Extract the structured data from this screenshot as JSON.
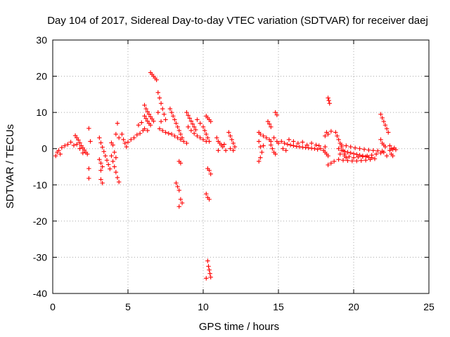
{
  "chart_data": {
    "type": "scatter",
    "title": "Day 104 of 2017, Sidereal Day-to-day VTEC variation (SDTVAR) for receiver daej",
    "xlabel": "GPS time / hours",
    "ylabel": "SDTVAR / TECUs",
    "xlim": [
      0,
      25
    ],
    "ylim": [
      -40,
      30
    ],
    "xticks": [
      0,
      5,
      10,
      15,
      20,
      25
    ],
    "yticks": [
      -40,
      -30,
      -20,
      -10,
      0,
      10,
      20,
      30
    ],
    "xtick_labels": [
      "0",
      "5",
      "10",
      "15",
      "20",
      "25"
    ],
    "ytick_labels": [
      "-40",
      "-30",
      "-20",
      "-10",
      "0",
      "10",
      "20",
      "30"
    ],
    "grid": true,
    "marker": "+",
    "series": [
      {
        "name": "SDTVAR",
        "color": "#ff0000",
        "points": [
          [
            0.2,
            -2.0
          ],
          [
            0.3,
            -1.0
          ],
          [
            0.4,
            -0.5
          ],
          [
            0.6,
            0.3
          ],
          [
            0.8,
            0.8
          ],
          [
            1.0,
            1.2
          ],
          [
            1.2,
            1.8
          ],
          [
            1.4,
            0.9
          ],
          [
            0.5,
            -1.5
          ],
          [
            1.5,
            3.6
          ],
          [
            1.6,
            3.0
          ],
          [
            1.7,
            2.4
          ],
          [
            1.8,
            1.6
          ],
          [
            1.9,
            0.8
          ],
          [
            2.0,
            0.2
          ],
          [
            2.1,
            -0.4
          ],
          [
            2.2,
            -1.0
          ],
          [
            2.3,
            -1.5
          ],
          [
            1.6,
            1.2
          ],
          [
            1.8,
            0.0
          ],
          [
            2.0,
            -1.2
          ],
          [
            2.4,
            5.6
          ],
          [
            2.5,
            2.0
          ],
          [
            2.4,
            -5.5
          ],
          [
            2.4,
            -8.2
          ],
          [
            3.1,
            3.0
          ],
          [
            3.2,
            1.6
          ],
          [
            3.3,
            0.4
          ],
          [
            3.4,
            -0.8
          ],
          [
            3.5,
            -2.0
          ],
          [
            3.6,
            -3.2
          ],
          [
            3.7,
            -4.4
          ],
          [
            3.8,
            -5.6
          ],
          [
            3.1,
            -3.0
          ],
          [
            3.2,
            -4.0
          ],
          [
            3.3,
            -5.0
          ],
          [
            3.2,
            -6.0
          ],
          [
            3.2,
            -8.5
          ],
          [
            3.3,
            -9.5
          ],
          [
            3.9,
            -2.0
          ],
          [
            4.0,
            -3.5
          ],
          [
            4.1,
            -5.0
          ],
          [
            4.2,
            -6.5
          ],
          [
            4.3,
            -8.0
          ],
          [
            4.4,
            -9.2
          ],
          [
            4.1,
            -1.0
          ],
          [
            4.2,
            -2.5
          ],
          [
            4.3,
            7.0
          ],
          [
            4.2,
            4.0
          ],
          [
            4.4,
            3.0
          ],
          [
            4.6,
            4.0
          ],
          [
            4.7,
            2.5
          ],
          [
            4.8,
            1.5
          ],
          [
            4.9,
            0.5
          ],
          [
            3.9,
            1.6
          ],
          [
            4.0,
            1.0
          ],
          [
            5.0,
            1.8
          ],
          [
            5.2,
            2.5
          ],
          [
            5.4,
            3.0
          ],
          [
            5.6,
            3.8
          ],
          [
            5.8,
            4.2
          ],
          [
            6.0,
            5.0
          ],
          [
            5.7,
            6.5
          ],
          [
            5.9,
            7.2
          ],
          [
            6.1,
            12.0
          ],
          [
            6.2,
            11.0
          ],
          [
            6.3,
            10.2
          ],
          [
            6.4,
            9.5
          ],
          [
            6.5,
            8.8
          ],
          [
            6.6,
            8.2
          ],
          [
            6.7,
            7.6
          ],
          [
            6.1,
            9.0
          ],
          [
            6.2,
            8.3
          ],
          [
            6.3,
            7.6
          ],
          [
            6.4,
            7.0
          ],
          [
            6.5,
            6.5
          ],
          [
            6.1,
            5.5
          ],
          [
            6.3,
            5.0
          ],
          [
            6.5,
            21.0
          ],
          [
            6.6,
            20.5
          ],
          [
            6.7,
            20.0
          ],
          [
            6.8,
            19.5
          ],
          [
            6.9,
            19.0
          ],
          [
            7.0,
            15.5
          ],
          [
            7.1,
            14.0
          ],
          [
            7.2,
            12.5
          ],
          [
            7.3,
            11.0
          ],
          [
            7.4,
            9.5
          ],
          [
            7.5,
            8.0
          ],
          [
            7.0,
            10.0
          ],
          [
            7.2,
            7.5
          ],
          [
            7.1,
            5.5
          ],
          [
            7.3,
            5.0
          ],
          [
            7.5,
            4.5
          ],
          [
            7.7,
            4.2
          ],
          [
            7.9,
            4.0
          ],
          [
            8.1,
            3.5
          ],
          [
            8.3,
            3.0
          ],
          [
            8.5,
            2.5
          ],
          [
            8.7,
            2.0
          ],
          [
            8.9,
            1.5
          ],
          [
            7.8,
            11.0
          ],
          [
            7.9,
            10.0
          ],
          [
            8.0,
            9.0
          ],
          [
            8.1,
            8.0
          ],
          [
            8.2,
            7.0
          ],
          [
            8.3,
            6.0
          ],
          [
            8.4,
            5.0
          ],
          [
            8.5,
            4.0
          ],
          [
            8.6,
            3.0
          ],
          [
            8.4,
            -3.5
          ],
          [
            8.5,
            -4.0
          ],
          [
            8.2,
            -9.5
          ],
          [
            8.3,
            -10.5
          ],
          [
            8.4,
            -11.5
          ],
          [
            8.5,
            -14.0
          ],
          [
            8.6,
            -15.0
          ],
          [
            8.4,
            -16.0
          ],
          [
            8.9,
            10.0
          ],
          [
            9.0,
            9.2
          ],
          [
            9.1,
            8.4
          ],
          [
            9.2,
            7.6
          ],
          [
            9.3,
            6.8
          ],
          [
            9.4,
            6.0
          ],
          [
            9.5,
            5.2
          ],
          [
            9.0,
            6.0
          ],
          [
            9.2,
            5.0
          ],
          [
            9.4,
            4.2
          ],
          [
            9.6,
            3.5
          ],
          [
            9.8,
            3.0
          ],
          [
            10.0,
            2.5
          ],
          [
            10.2,
            2.0
          ],
          [
            9.6,
            8.0
          ],
          [
            9.8,
            7.0
          ],
          [
            10.0,
            6.0
          ],
          [
            10.1,
            5.0
          ],
          [
            10.2,
            4.0
          ],
          [
            10.3,
            3.0
          ],
          [
            10.4,
            2.0
          ],
          [
            10.2,
            9.0
          ],
          [
            10.3,
            8.5
          ],
          [
            10.4,
            8.0
          ],
          [
            10.5,
            7.5
          ],
          [
            10.3,
            -5.5
          ],
          [
            10.4,
            -6.0
          ],
          [
            10.5,
            -7.0
          ],
          [
            10.2,
            -12.5
          ],
          [
            10.3,
            -13.5
          ],
          [
            10.4,
            -14.0
          ],
          [
            10.3,
            -31.0
          ],
          [
            10.35,
            -32.5
          ],
          [
            10.4,
            -33.5
          ],
          [
            10.45,
            -34.5
          ],
          [
            10.5,
            -35.5
          ],
          [
            10.2,
            -35.8
          ],
          [
            10.9,
            3.0
          ],
          [
            11.0,
            2.0
          ],
          [
            11.1,
            1.5
          ],
          [
            11.2,
            1.0
          ],
          [
            11.3,
            0.5
          ],
          [
            11.4,
            1.2
          ],
          [
            11.5,
            -0.5
          ],
          [
            11.0,
            -0.5
          ],
          [
            11.7,
            4.5
          ],
          [
            11.8,
            3.5
          ],
          [
            11.9,
            2.5
          ],
          [
            12.0,
            1.5
          ],
          [
            12.1,
            0.5
          ],
          [
            11.8,
            0.0
          ],
          [
            12.0,
            -0.5
          ],
          [
            13.7,
            4.5
          ],
          [
            13.8,
            4.0
          ],
          [
            14.0,
            3.5
          ],
          [
            14.2,
            3.0
          ],
          [
            14.4,
            2.5
          ],
          [
            14.5,
            2.0
          ],
          [
            13.7,
            2.0
          ],
          [
            13.8,
            0.5
          ],
          [
            13.9,
            -1.0
          ],
          [
            13.8,
            -2.5
          ],
          [
            13.7,
            -3.5
          ],
          [
            14.0,
            0.8
          ],
          [
            14.3,
            7.5
          ],
          [
            14.4,
            6.8
          ],
          [
            14.5,
            6.0
          ],
          [
            14.5,
            1.0
          ],
          [
            14.6,
            0.0
          ],
          [
            14.7,
            -1.0
          ],
          [
            14.8,
            -1.5
          ],
          [
            14.8,
            10.0
          ],
          [
            14.9,
            9.3
          ],
          [
            14.7,
            3.0
          ],
          [
            14.9,
            2.0
          ],
          [
            15.0,
            1.5
          ],
          [
            15.2,
            2.0
          ],
          [
            15.4,
            1.5
          ],
          [
            15.6,
            1.2
          ],
          [
            15.8,
            1.0
          ],
          [
            16.0,
            0.8
          ],
          [
            16.2,
            0.6
          ],
          [
            16.4,
            0.5
          ],
          [
            16.6,
            0.4
          ],
          [
            16.8,
            0.3
          ],
          [
            17.0,
            0.2
          ],
          [
            17.2,
            0.1
          ],
          [
            17.4,
            0.0
          ],
          [
            17.6,
            -0.2
          ],
          [
            17.8,
            0.0
          ],
          [
            15.3,
            0.0
          ],
          [
            15.5,
            -0.5
          ],
          [
            15.7,
            2.5
          ],
          [
            16.0,
            2.0
          ],
          [
            16.3,
            1.5
          ],
          [
            16.6,
            1.8
          ],
          [
            16.9,
            1.0
          ],
          [
            17.2,
            1.5
          ],
          [
            17.5,
            1.0
          ],
          [
            17.7,
            0.8
          ],
          [
            18.0,
            -0.5
          ],
          [
            18.1,
            -1.0
          ],
          [
            18.2,
            -1.5
          ],
          [
            18.3,
            -2.0
          ],
          [
            18.1,
            0.5
          ],
          [
            18.2,
            4.5
          ],
          [
            18.3,
            4.0
          ],
          [
            18.1,
            3.5
          ],
          [
            18.5,
            4.8
          ],
          [
            18.3,
            14.0
          ],
          [
            18.35,
            13.3
          ],
          [
            18.4,
            12.5
          ],
          [
            18.3,
            -4.5
          ],
          [
            18.5,
            -4.0
          ],
          [
            18.7,
            -3.5
          ],
          [
            18.8,
            4.5
          ],
          [
            18.9,
            3.5
          ],
          [
            19.0,
            2.5
          ],
          [
            19.1,
            1.5
          ],
          [
            19.2,
            0.5
          ],
          [
            19.3,
            -0.5
          ],
          [
            19.4,
            -1.5
          ],
          [
            19.5,
            -2.5
          ],
          [
            19.0,
            0.0
          ],
          [
            19.2,
            -0.5
          ],
          [
            19.4,
            -0.8
          ],
          [
            19.6,
            -1.0
          ],
          [
            19.8,
            -1.2
          ],
          [
            20.0,
            -1.4
          ],
          [
            20.2,
            -1.6
          ],
          [
            20.4,
            -1.8
          ],
          [
            20.6,
            -2.0
          ],
          [
            20.8,
            -2.2
          ],
          [
            21.0,
            -2.4
          ],
          [
            21.2,
            -2.5
          ],
          [
            19.0,
            -3.0
          ],
          [
            19.3,
            -3.2
          ],
          [
            19.6,
            -3.3
          ],
          [
            19.9,
            -3.4
          ],
          [
            20.2,
            -3.4
          ],
          [
            20.5,
            -3.3
          ],
          [
            20.8,
            -3.2
          ],
          [
            21.1,
            -3.0
          ],
          [
            21.4,
            -2.8
          ],
          [
            19.2,
            1.0
          ],
          [
            19.5,
            0.8
          ],
          [
            19.8,
            0.5
          ],
          [
            20.1,
            0.2
          ],
          [
            20.4,
            0.0
          ],
          [
            20.7,
            -0.2
          ],
          [
            21.0,
            -0.4
          ],
          [
            21.3,
            -0.5
          ],
          [
            21.6,
            -0.6
          ],
          [
            21.9,
            -0.7
          ],
          [
            19.1,
            -1.5
          ],
          [
            19.4,
            -2.0
          ],
          [
            19.7,
            -2.2
          ],
          [
            20.0,
            -2.5
          ],
          [
            20.3,
            -2.3
          ],
          [
            20.6,
            -2.2
          ],
          [
            20.9,
            -2.0
          ],
          [
            21.2,
            -1.8
          ],
          [
            21.5,
            -1.5
          ],
          [
            21.8,
            -1.2
          ],
          [
            21.8,
            9.5
          ],
          [
            21.9,
            8.5
          ],
          [
            22.0,
            7.5
          ],
          [
            22.1,
            6.5
          ],
          [
            22.2,
            5.5
          ],
          [
            22.3,
            4.5
          ],
          [
            21.8,
            2.5
          ],
          [
            21.9,
            1.5
          ],
          [
            22.0,
            1.0
          ],
          [
            22.1,
            0.5
          ],
          [
            22.0,
            -1.0
          ],
          [
            22.2,
            -2.0
          ],
          [
            22.4,
            -0.5
          ],
          [
            22.5,
            0.0
          ],
          [
            22.6,
            -0.2
          ],
          [
            22.7,
            0.2
          ],
          [
            22.8,
            -0.3
          ],
          [
            22.5,
            -1.5
          ],
          [
            22.6,
            -2.0
          ],
          [
            22.4,
            0.8
          ]
        ]
      }
    ]
  }
}
